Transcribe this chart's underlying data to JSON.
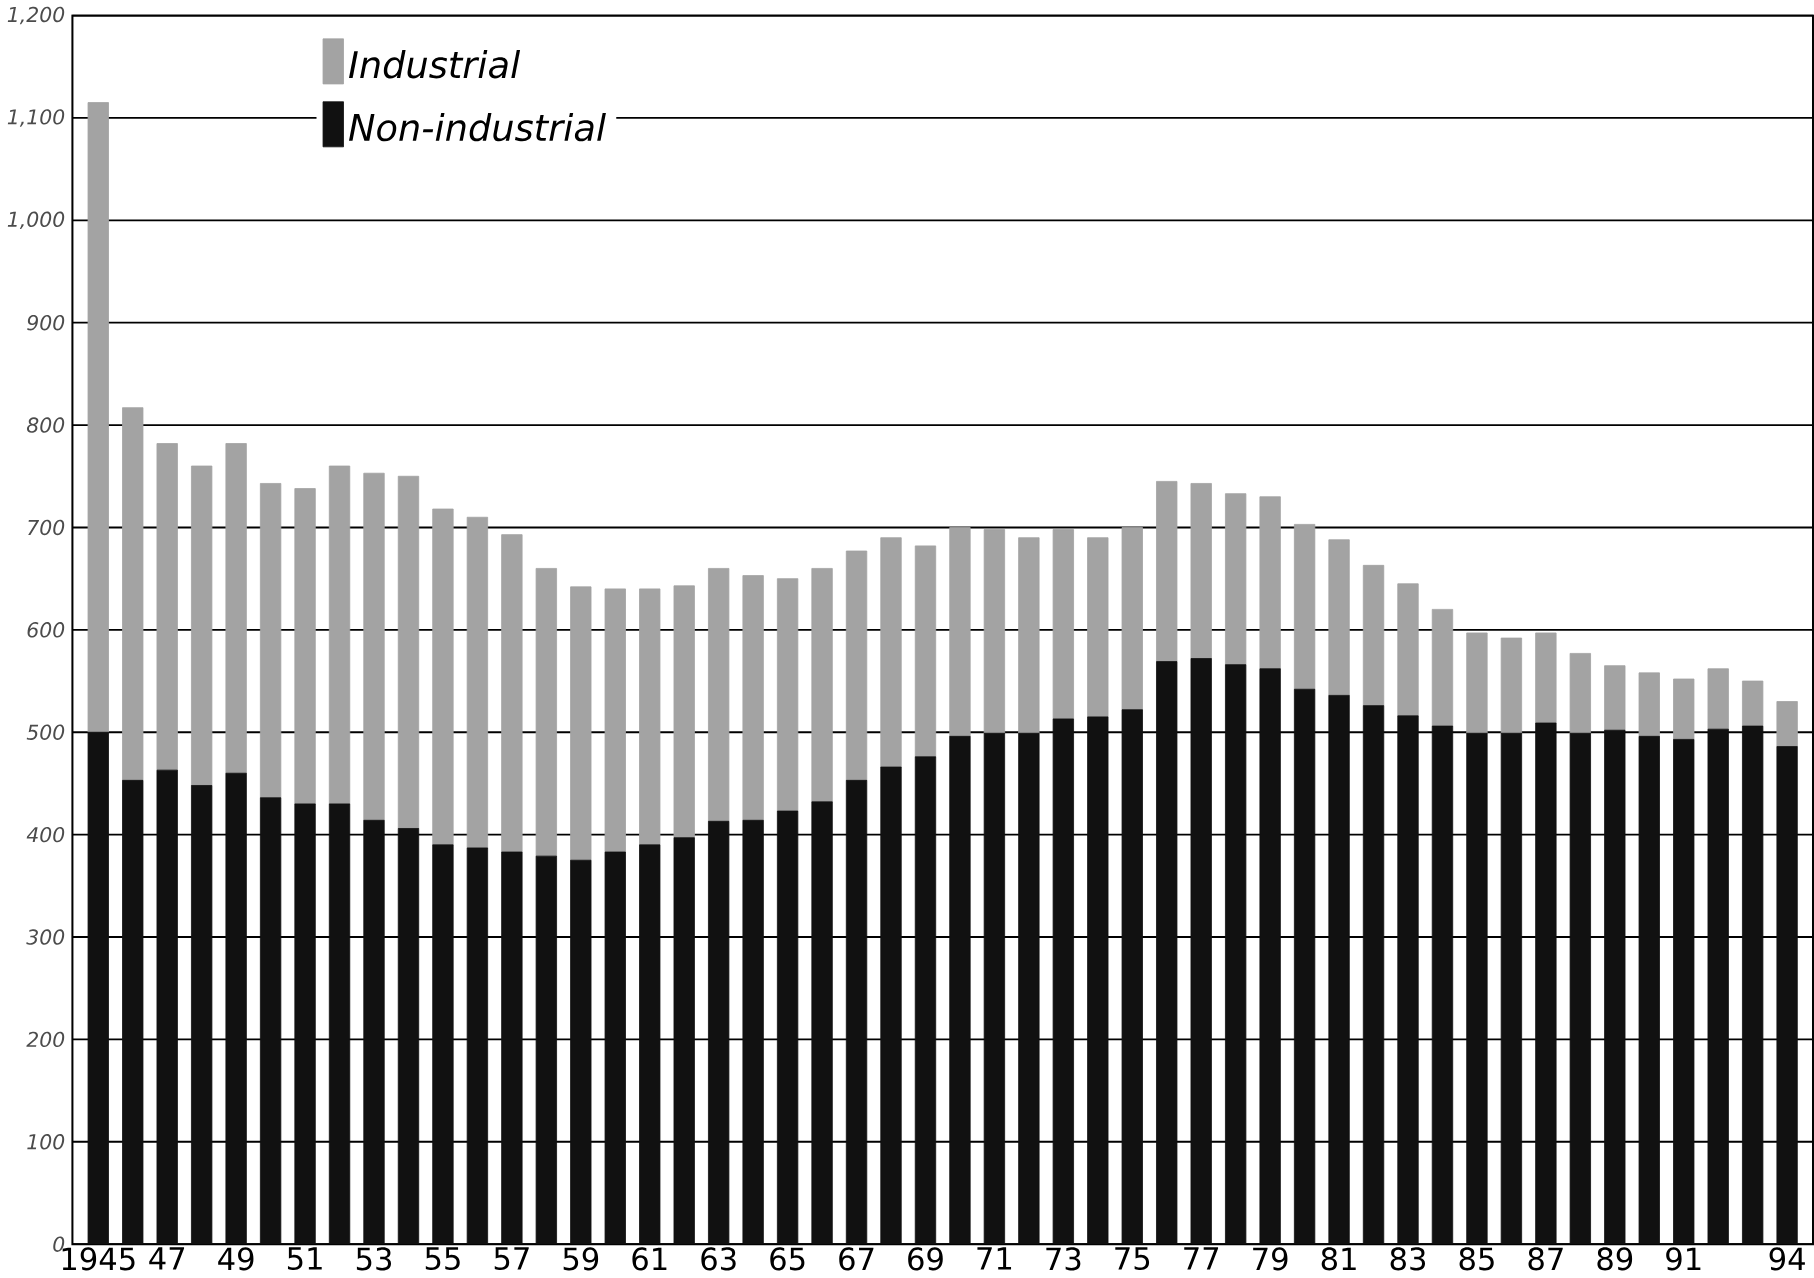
{
  "chart_data": {
    "type": "bar",
    "stacked": true,
    "categories": [
      "1945",
      null,
      "47",
      null,
      "49",
      null,
      "51",
      null,
      "53",
      null,
      "55",
      null,
      "57",
      null,
      "59",
      null,
      "61",
      null,
      "63",
      null,
      "65",
      null,
      "67",
      null,
      "69",
      null,
      "71",
      null,
      "73",
      null,
      "75",
      null,
      "77",
      null,
      "79",
      null,
      "81",
      null,
      "83",
      null,
      "85",
      null,
      "87",
      null,
      "89",
      null,
      "91",
      null,
      null,
      "94"
    ],
    "series": [
      {
        "name": "Non-industrial",
        "color": "#111111",
        "values": [
          500,
          453,
          463,
          448,
          460,
          436,
          430,
          430,
          414,
          406,
          390,
          387,
          383,
          379,
          375,
          383,
          390,
          397,
          413,
          414,
          423,
          432,
          453,
          466,
          476,
          496,
          499,
          499,
          513,
          515,
          522,
          569,
          572,
          566,
          562,
          542,
          536,
          526,
          516,
          506,
          499,
          499,
          509,
          499,
          502,
          496,
          493,
          503,
          506,
          486
        ]
      },
      {
        "name": "Industrial",
        "color": "#a3a3a3",
        "values": [
          615,
          364,
          319,
          312,
          322,
          307,
          308,
          330,
          339,
          344,
          328,
          323,
          310,
          281,
          267,
          257,
          250,
          246,
          247,
          239,
          227,
          228,
          224,
          224,
          206,
          204,
          199,
          191,
          185,
          175,
          178,
          176,
          171,
          167,
          168,
          161,
          152,
          137,
          129,
          114,
          98,
          93,
          88,
          78,
          63,
          62,
          59,
          59,
          44,
          44
        ]
      }
    ],
    "ylim": [
      0,
      1200
    ],
    "yticks": [
      0,
      100,
      200,
      300,
      400,
      500,
      600,
      700,
      800,
      900,
      {
        "value": 1000,
        "label": "1,000"
      },
      {
        "value": 1100,
        "label": "1,100"
      },
      {
        "value": 1200,
        "label": "1,200"
      }
    ],
    "grid": "y",
    "legend": "top left"
  }
}
